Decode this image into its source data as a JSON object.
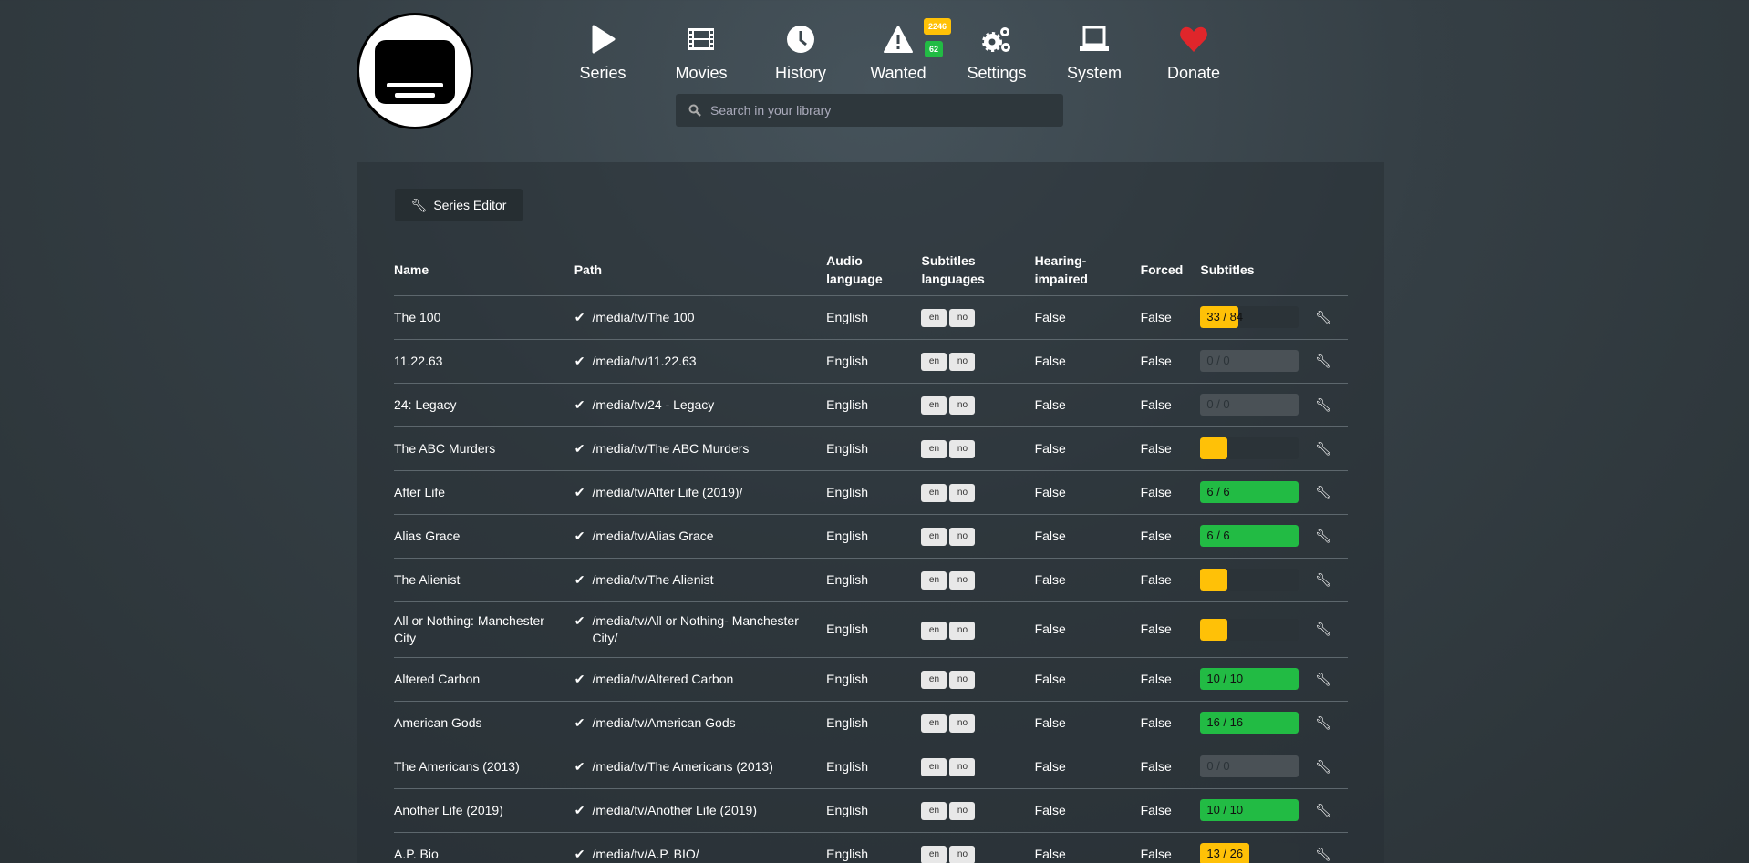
{
  "nav": [
    {
      "label": "Series",
      "icon": "play-icon"
    },
    {
      "label": "Movies",
      "icon": "film-icon"
    },
    {
      "label": "History",
      "icon": "clock-icon"
    },
    {
      "label": "Wanted",
      "icon": "warning-icon"
    },
    {
      "label": "Settings",
      "icon": "gears-icon"
    },
    {
      "label": "System",
      "icon": "laptop-icon"
    },
    {
      "label": "Donate",
      "icon": "heart-icon"
    }
  ],
  "badges": {
    "wanted_series": "2246",
    "wanted_movies": "62",
    "yellow": "#ffc107",
    "green": "#22bb44"
  },
  "search": {
    "placeholder": "Search in your library"
  },
  "toolbar": {
    "series_editor": "Series Editor"
  },
  "columns": [
    "Name",
    "Path",
    "Audio language",
    "Subtitles languages",
    "Hearing-impaired",
    "Forced",
    "Subtitles"
  ],
  "rows": [
    {
      "name": "The 100",
      "path": "/media/tv/The 100",
      "audio": "English",
      "langs": [
        "en",
        "no"
      ],
      "hi": "False",
      "forced": "False",
      "subs": "33 / 84",
      "progress": 0.39,
      "color": "#ffc107"
    },
    {
      "name": "11.22.63",
      "path": "/media/tv/11.22.63",
      "audio": "English",
      "langs": [
        "en",
        "no"
      ],
      "hi": "False",
      "forced": "False",
      "subs": "0 / 0",
      "progress": 0,
      "color": ""
    },
    {
      "name": "24: Legacy",
      "path": "/media/tv/24 - Legacy",
      "audio": "English",
      "langs": [
        "en",
        "no"
      ],
      "hi": "False",
      "forced": "False",
      "subs": "0 / 0",
      "progress": 0,
      "color": ""
    },
    {
      "name": "The ABC Murders",
      "path": "/media/tv/The ABC Murders",
      "audio": "English",
      "langs": [
        "en",
        "no"
      ],
      "hi": "False",
      "forced": "False",
      "subs": "",
      "progress": 0,
      "color": "#ffc107"
    },
    {
      "name": "After Life",
      "path": "/media/tv/After Life (2019)/",
      "audio": "English",
      "langs": [
        "en",
        "no"
      ],
      "hi": "False",
      "forced": "False",
      "subs": "6 / 6",
      "progress": 1,
      "color": "#22bb44"
    },
    {
      "name": "Alias Grace",
      "path": "/media/tv/Alias Grace",
      "audio": "English",
      "langs": [
        "en",
        "no"
      ],
      "hi": "False",
      "forced": "False",
      "subs": "6 / 6",
      "progress": 1,
      "color": "#22bb44"
    },
    {
      "name": "The Alienist",
      "path": "/media/tv/The Alienist",
      "audio": "English",
      "langs": [
        "en",
        "no"
      ],
      "hi": "False",
      "forced": "False",
      "subs": "",
      "progress": 0,
      "color": "#ffc107"
    },
    {
      "name": "All or Nothing: Manchester City",
      "path": "/media/tv/All or Nothing- Manchester City/",
      "audio": "English",
      "langs": [
        "en",
        "no"
      ],
      "hi": "False",
      "forced": "False",
      "subs": "",
      "progress": 0,
      "color": "#ffc107"
    },
    {
      "name": "Altered Carbon",
      "path": "/media/tv/Altered Carbon",
      "audio": "English",
      "langs": [
        "en",
        "no"
      ],
      "hi": "False",
      "forced": "False",
      "subs": "10 / 10",
      "progress": 1,
      "color": "#22bb44"
    },
    {
      "name": "American Gods",
      "path": "/media/tv/American Gods",
      "audio": "English",
      "langs": [
        "en",
        "no"
      ],
      "hi": "False",
      "forced": "False",
      "subs": "16 / 16",
      "progress": 1,
      "color": "#22bb44"
    },
    {
      "name": "The Americans (2013)",
      "path": "/media/tv/The Americans (2013)",
      "audio": "English",
      "langs": [
        "en",
        "no"
      ],
      "hi": "False",
      "forced": "False",
      "subs": "0 / 0",
      "progress": 0,
      "color": ""
    },
    {
      "name": "Another Life (2019)",
      "path": "/media/tv/Another Life (2019)",
      "audio": "English",
      "langs": [
        "en",
        "no"
      ],
      "hi": "False",
      "forced": "False",
      "subs": "10 / 10",
      "progress": 1,
      "color": "#22bb44"
    },
    {
      "name": "A.P. Bio",
      "path": "/media/tv/A.P. BIO/",
      "audio": "English",
      "langs": [
        "en",
        "no"
      ],
      "hi": "False",
      "forced": "False",
      "subs": "13 / 26",
      "progress": 0.5,
      "color": "#ffc107"
    }
  ]
}
